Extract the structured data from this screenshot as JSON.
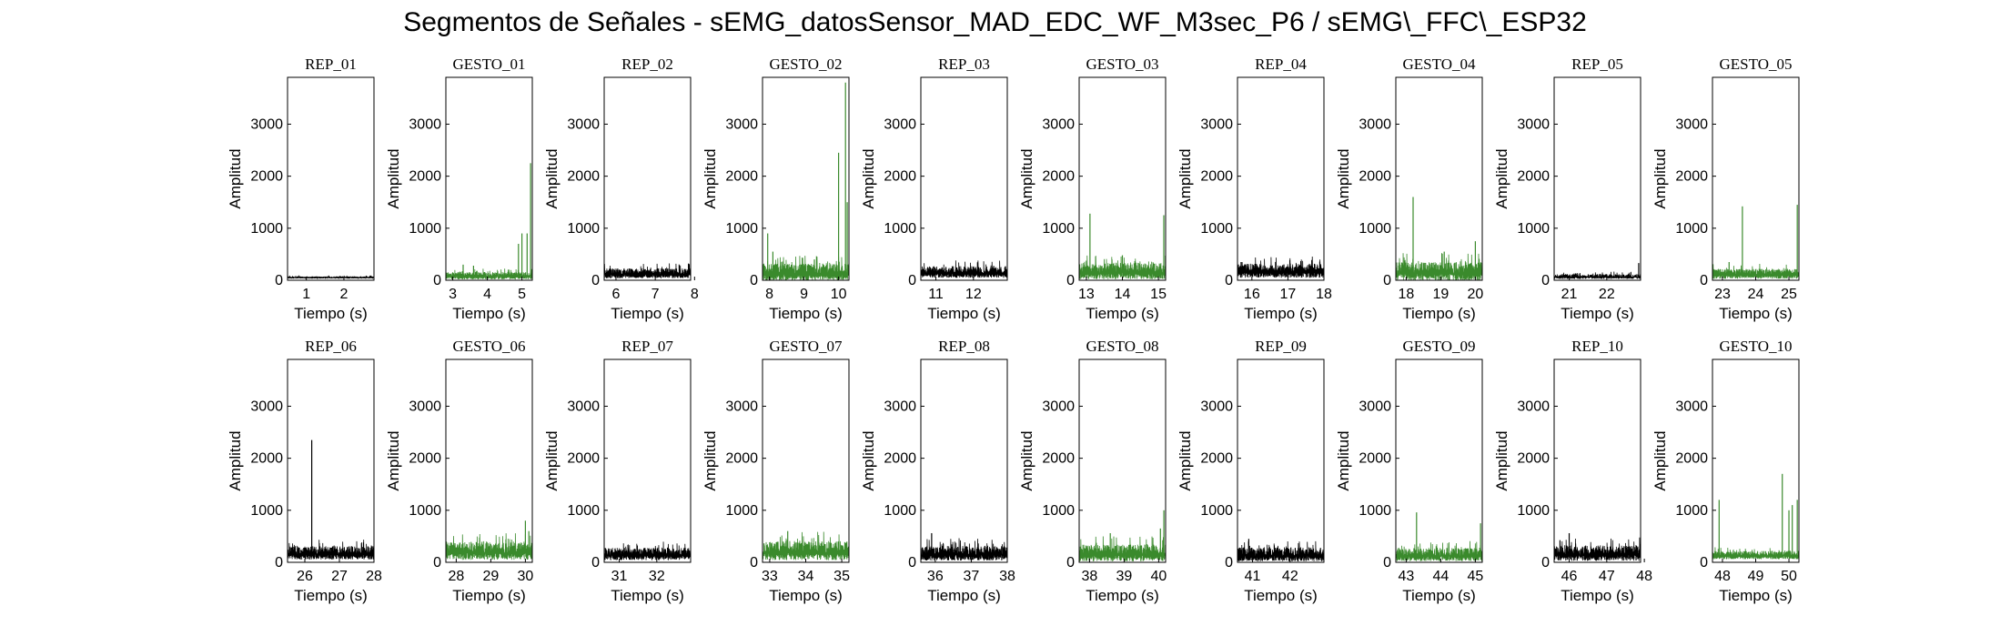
{
  "title": "Segmentos de Señales - sEMG_datosSensor_MAD_EDC_WF_M3sec_P6 / sEMG\\_FFC\\_ESP32",
  "colors": {
    "rep": "#000000",
    "gesto": "#3a8a2c"
  },
  "chart_data": [
    {
      "type": "line",
      "title": "REP_01",
      "color": "#000000",
      "xlabel": "Tiempo (s)",
      "ylabel": "Amplitud",
      "xlim": [
        0.5,
        2.8
      ],
      "ylim": [
        0,
        3900
      ],
      "xticks": [
        1,
        2
      ],
      "yticks": [
        0,
        1000,
        2000,
        3000
      ],
      "baseline": 50,
      "noise": 25,
      "spikes": []
    },
    {
      "type": "line",
      "title": "GESTO_01",
      "color": "#3a8a2c",
      "xlabel": "Tiempo (s)",
      "ylabel": "Amplitud",
      "xlim": [
        2.8,
        5.3
      ],
      "ylim": [
        0,
        3900
      ],
      "xticks": [
        3,
        4,
        5
      ],
      "yticks": [
        0,
        1000,
        2000,
        3000
      ],
      "baseline": 70,
      "noise": 90,
      "spikes": [
        [
          3.3,
          300
        ],
        [
          3.6,
          280
        ],
        [
          4.9,
          700
        ],
        [
          5.0,
          900
        ],
        [
          5.15,
          900
        ],
        [
          5.25,
          2250
        ]
      ]
    },
    {
      "type": "line",
      "title": "REP_02",
      "color": "#000000",
      "xlabel": "Tiempo (s)",
      "ylabel": "Amplitud",
      "xlim": [
        5.7,
        7.9
      ],
      "ylim": [
        0,
        3900
      ],
      "xticks": [
        6,
        7,
        8
      ],
      "yticks": [
        0,
        1000,
        2000,
        3000
      ],
      "baseline": 110,
      "noise": 120,
      "spikes": []
    },
    {
      "type": "line",
      "title": "GESTO_02",
      "color": "#3a8a2c",
      "xlabel": "Tiempo (s)",
      "ylabel": "Amplitud",
      "xlim": [
        7.8,
        10.3
      ],
      "ylim": [
        0,
        3900
      ],
      "xticks": [
        8,
        9,
        10
      ],
      "yticks": [
        0,
        1000,
        2000,
        3000
      ],
      "baseline": 120,
      "noise": 200,
      "spikes": [
        [
          7.95,
          900
        ],
        [
          8.1,
          550
        ],
        [
          9.3,
          400
        ],
        [
          10.0,
          2450
        ],
        [
          10.2,
          3800
        ],
        [
          10.25,
          1500
        ]
      ]
    },
    {
      "type": "line",
      "title": "REP_03",
      "color": "#000000",
      "xlabel": "Tiempo (s)",
      "ylabel": "Amplitud",
      "xlim": [
        10.6,
        12.9
      ],
      "ylim": [
        0,
        3900
      ],
      "xticks": [
        11,
        12
      ],
      "yticks": [
        0,
        1000,
        2000,
        3000
      ],
      "baseline": 130,
      "noise": 140,
      "spikes": []
    },
    {
      "type": "line",
      "title": "GESTO_03",
      "color": "#3a8a2c",
      "xlabel": "Tiempo (s)",
      "ylabel": "Amplitud",
      "xlim": [
        12.8,
        15.2
      ],
      "ylim": [
        0,
        3900
      ],
      "xticks": [
        13,
        14,
        15
      ],
      "yticks": [
        0,
        1000,
        2000,
        3000
      ],
      "baseline": 140,
      "noise": 200,
      "spikes": [
        [
          13.1,
          1280
        ],
        [
          14.0,
          480
        ],
        [
          15.15,
          1250
        ]
      ]
    },
    {
      "type": "line",
      "title": "REP_04",
      "color": "#000000",
      "xlabel": "Tiempo (s)",
      "ylabel": "Amplitud",
      "xlim": [
        15.6,
        18.0
      ],
      "ylim": [
        0,
        3900
      ],
      "xticks": [
        16,
        17,
        18
      ],
      "yticks": [
        0,
        1000,
        2000,
        3000
      ],
      "baseline": 150,
      "noise": 170,
      "spikes": [
        [
          15.7,
          350
        ]
      ]
    },
    {
      "type": "line",
      "title": "GESTO_04",
      "color": "#3a8a2c",
      "xlabel": "Tiempo (s)",
      "ylabel": "Amplitud",
      "xlim": [
        17.7,
        20.2
      ],
      "ylim": [
        0,
        3900
      ],
      "xticks": [
        18,
        19,
        20
      ],
      "yticks": [
        0,
        1000,
        2000,
        3000
      ],
      "baseline": 130,
      "noise": 220,
      "spikes": [
        [
          18.2,
          1600
        ],
        [
          19.1,
          550
        ],
        [
          20.0,
          750
        ]
      ]
    },
    {
      "type": "line",
      "title": "REP_05",
      "color": "#000000",
      "xlabel": "Tiempo (s)",
      "ylabel": "Amplitud",
      "xlim": [
        20.6,
        22.9
      ],
      "ylim": [
        0,
        3900
      ],
      "xticks": [
        21,
        22
      ],
      "yticks": [
        0,
        1000,
        2000,
        3000
      ],
      "baseline": 60,
      "noise": 60,
      "spikes": [
        [
          22.85,
          330
        ]
      ]
    },
    {
      "type": "line",
      "title": "GESTO_05",
      "color": "#3a8a2c",
      "xlabel": "Tiempo (s)",
      "ylabel": "Amplitud",
      "xlim": [
        22.7,
        25.3
      ],
      "ylim": [
        0,
        3900
      ],
      "xticks": [
        23,
        24,
        25
      ],
      "yticks": [
        0,
        1000,
        2000,
        3000
      ],
      "baseline": 100,
      "noise": 120,
      "spikes": [
        [
          23.2,
          350
        ],
        [
          23.6,
          1420
        ],
        [
          25.25,
          1450
        ]
      ]
    },
    {
      "type": "line",
      "title": "REP_06",
      "color": "#000000",
      "xlabel": "Tiempo (s)",
      "ylabel": "Amplitud",
      "xlim": [
        25.5,
        28.0
      ],
      "ylim": [
        0,
        3900
      ],
      "xticks": [
        26,
        27,
        28
      ],
      "yticks": [
        0,
        1000,
        2000,
        3000
      ],
      "baseline": 150,
      "noise": 160,
      "spikes": [
        [
          26.2,
          2350
        ]
      ]
    },
    {
      "type": "line",
      "title": "GESTO_06",
      "color": "#3a8a2c",
      "xlabel": "Tiempo (s)",
      "ylabel": "Amplitud",
      "xlim": [
        27.7,
        30.2
      ],
      "ylim": [
        0,
        3900
      ],
      "xticks": [
        28,
        29,
        30
      ],
      "yticks": [
        0,
        1000,
        2000,
        3000
      ],
      "baseline": 180,
      "noise": 220,
      "spikes": [
        [
          30.0,
          800
        ],
        [
          30.1,
          600
        ]
      ]
    },
    {
      "type": "line",
      "title": "REP_07",
      "color": "#000000",
      "xlabel": "Tiempo (s)",
      "ylabel": "Amplitud",
      "xlim": [
        30.6,
        32.9
      ],
      "ylim": [
        0,
        3900
      ],
      "xticks": [
        31,
        32
      ],
      "yticks": [
        0,
        1000,
        2000,
        3000
      ],
      "baseline": 130,
      "noise": 150,
      "spikes": []
    },
    {
      "type": "line",
      "title": "GESTO_07",
      "color": "#3a8a2c",
      "xlabel": "Tiempo (s)",
      "ylabel": "Amplitud",
      "xlim": [
        32.8,
        35.2
      ],
      "ylim": [
        0,
        3900
      ],
      "xticks": [
        33,
        34,
        35
      ],
      "yticks": [
        0,
        1000,
        2000,
        3000
      ],
      "baseline": 180,
      "noise": 230,
      "spikes": [
        [
          33.5,
          600
        ]
      ]
    },
    {
      "type": "line",
      "title": "REP_08",
      "color": "#000000",
      "xlabel": "Tiempo (s)",
      "ylabel": "Amplitud",
      "xlim": [
        35.6,
        38.0
      ],
      "ylim": [
        0,
        3900
      ],
      "xticks": [
        36,
        37,
        38
      ],
      "yticks": [
        0,
        1000,
        2000,
        3000
      ],
      "baseline": 140,
      "noise": 180,
      "spikes": [
        [
          35.9,
          560
        ]
      ]
    },
    {
      "type": "line",
      "title": "GESTO_08",
      "color": "#3a8a2c",
      "xlabel": "Tiempo (s)",
      "ylabel": "Amplitud",
      "xlim": [
        37.7,
        40.2
      ],
      "ylim": [
        0,
        3900
      ],
      "xticks": [
        38,
        39,
        40
      ],
      "yticks": [
        0,
        1000,
        2000,
        3000
      ],
      "baseline": 140,
      "noise": 200,
      "spikes": [
        [
          38.6,
          560
        ],
        [
          40.05,
          650
        ],
        [
          40.15,
          1000
        ]
      ]
    },
    {
      "type": "line",
      "title": "REP_09",
      "color": "#000000",
      "xlabel": "Tiempo (s)",
      "ylabel": "Amplitud",
      "xlim": [
        40.6,
        42.9
      ],
      "ylim": [
        0,
        3900
      ],
      "xticks": [
        41,
        42
      ],
      "yticks": [
        0,
        1000,
        2000,
        3000
      ],
      "baseline": 120,
      "noise": 170,
      "spikes": [
        [
          40.9,
          450
        ]
      ]
    },
    {
      "type": "line",
      "title": "GESTO_09",
      "color": "#3a8a2c",
      "xlabel": "Tiempo (s)",
      "ylabel": "Amplitud",
      "xlim": [
        42.7,
        45.2
      ],
      "ylim": [
        0,
        3900
      ],
      "xticks": [
        43,
        44,
        45
      ],
      "yticks": [
        0,
        1000,
        2000,
        3000
      ],
      "baseline": 120,
      "noise": 160,
      "spikes": [
        [
          43.3,
          960
        ],
        [
          45.15,
          750
        ]
      ]
    },
    {
      "type": "line",
      "title": "REP_10",
      "color": "#000000",
      "xlabel": "Tiempo (s)",
      "ylabel": "Amplitud",
      "xlim": [
        45.6,
        47.9
      ],
      "ylim": [
        0,
        3900
      ],
      "xticks": [
        46,
        47,
        48
      ],
      "yticks": [
        0,
        1000,
        2000,
        3000
      ],
      "baseline": 140,
      "noise": 190,
      "spikes": [
        [
          46.0,
          560
        ]
      ]
    },
    {
      "type": "line",
      "title": "GESTO_10",
      "color": "#3a8a2c",
      "xlabel": "Tiempo (s)",
      "ylabel": "Amplitud",
      "xlim": [
        47.7,
        50.3
      ],
      "ylim": [
        0,
        3900
      ],
      "xticks": [
        48,
        49,
        50
      ],
      "yticks": [
        0,
        1000,
        2000,
        3000
      ],
      "baseline": 120,
      "noise": 100,
      "spikes": [
        [
          47.9,
          1200
        ],
        [
          49.8,
          1700
        ],
        [
          50.0,
          1000
        ],
        [
          50.1,
          1100
        ],
        [
          50.25,
          1200
        ]
      ]
    }
  ]
}
